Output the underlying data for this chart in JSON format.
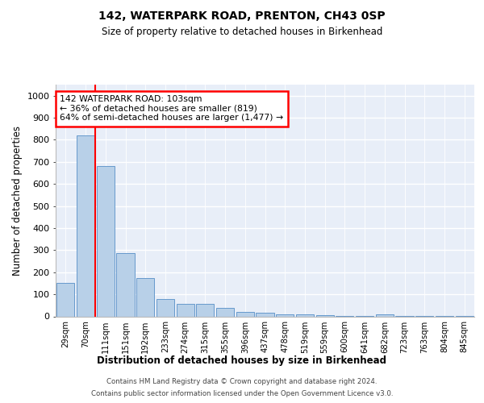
{
  "title1": "142, WATERPARK ROAD, PRENTON, CH43 0SP",
  "title2": "Size of property relative to detached houses in Birkenhead",
  "xlabel": "Distribution of detached houses by size in Birkenhead",
  "ylabel": "Number of detached properties",
  "categories": [
    "29sqm",
    "70sqm",
    "111sqm",
    "151sqm",
    "192sqm",
    "233sqm",
    "274sqm",
    "315sqm",
    "355sqm",
    "396sqm",
    "437sqm",
    "478sqm",
    "519sqm",
    "559sqm",
    "600sqm",
    "641sqm",
    "682sqm",
    "723sqm",
    "763sqm",
    "804sqm",
    "845sqm"
  ],
  "values": [
    150,
    820,
    680,
    285,
    175,
    78,
    57,
    55,
    40,
    20,
    15,
    10,
    8,
    5,
    3,
    2,
    8,
    2,
    1,
    1,
    1
  ],
  "bar_color": "#b8d0e8",
  "bar_edge_color": "#6699cc",
  "redline_index": 2,
  "annotation_line1": "142 WATERPARK ROAD: 103sqm",
  "annotation_line2": "← 36% of detached houses are smaller (819)",
  "annotation_line3": "64% of semi-detached houses are larger (1,477) →",
  "footnote1": "Contains HM Land Registry data © Crown copyright and database right 2024.",
  "footnote2": "Contains public sector information licensed under the Open Government Licence v3.0.",
  "ylim": [
    0,
    1050
  ],
  "yticks": [
    0,
    100,
    200,
    300,
    400,
    500,
    600,
    700,
    800,
    900,
    1000
  ],
  "bg_color": "#ffffff",
  "plot_bg_color": "#e8eef8"
}
